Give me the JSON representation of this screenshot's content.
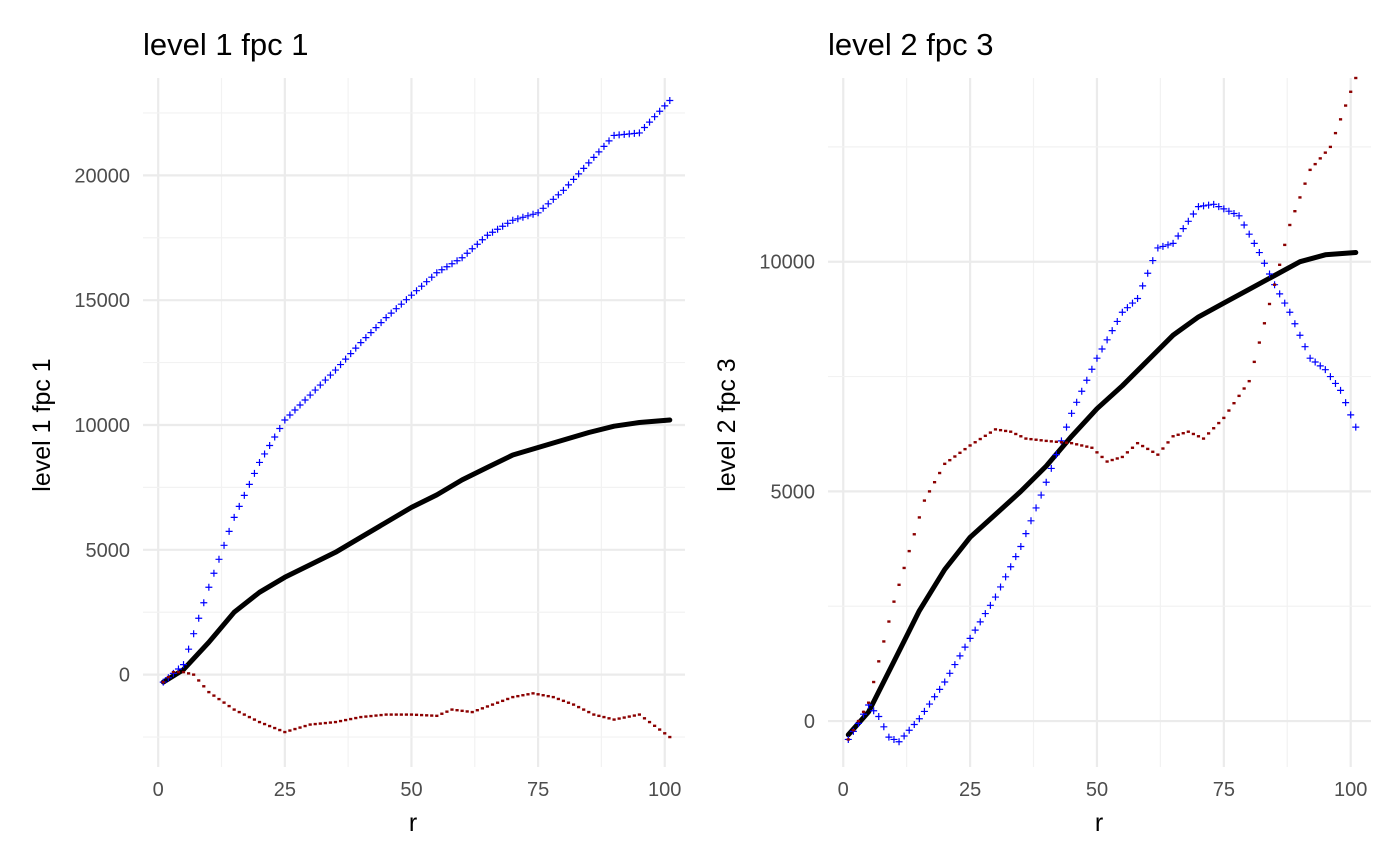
{
  "chart_data": [
    {
      "type": "line",
      "title": "level  1 fpc 1",
      "xlabel": "r",
      "ylabel": "level  1 fpc 1",
      "xlim": [
        -3,
        104
      ],
      "ylim": [
        -3700,
        23900
      ],
      "x_ticks": [
        0,
        25,
        50,
        75,
        100
      ],
      "x_tick_labels": [
        "0",
        "25",
        "50",
        "75",
        "100"
      ],
      "y_ticks": [
        0,
        5000,
        10000,
        15000,
        20000
      ],
      "y_tick_labels": [
        "0",
        "5000",
        "10000",
        "15000",
        "20000"
      ],
      "grid": true,
      "legend": "none",
      "series": [
        {
          "style": "line",
          "color": "#000000",
          "points": [
            [
              1,
              -300
            ],
            [
              5,
              200
            ],
            [
              10,
              1300
            ],
            [
              15,
              2500
            ],
            [
              20,
              3300
            ],
            [
              25,
              3900
            ],
            [
              30,
              4400
            ],
            [
              35,
              4900
            ],
            [
              40,
              5500
            ],
            [
              45,
              6100
            ],
            [
              50,
              6700
            ],
            [
              55,
              7200
            ],
            [
              60,
              7800
            ],
            [
              65,
              8300
            ],
            [
              70,
              8800
            ],
            [
              75,
              9100
            ],
            [
              80,
              9400
            ],
            [
              85,
              9700
            ],
            [
              90,
              9950
            ],
            [
              95,
              10100
            ],
            [
              101,
              10200
            ]
          ]
        },
        {
          "style": "plus",
          "color": "#0000ff",
          "points": [
            [
              1,
              -300
            ],
            [
              5,
              400
            ],
            [
              10,
              3500
            ],
            [
              15,
              6300
            ],
            [
              20,
              8500
            ],
            [
              25,
              10200
            ],
            [
              30,
              11200
            ],
            [
              35,
              12200
            ],
            [
              40,
              13300
            ],
            [
              45,
              14300
            ],
            [
              50,
              15200
            ],
            [
              55,
              16100
            ],
            [
              60,
              16700
            ],
            [
              65,
              17600
            ],
            [
              70,
              18200
            ],
            [
              75,
              18500
            ],
            [
              80,
              19400
            ],
            [
              85,
              20500
            ],
            [
              90,
              21600
            ],
            [
              95,
              21700
            ],
            [
              101,
              23000
            ]
          ]
        },
        {
          "style": "dash",
          "color": "#8b0000",
          "points": [
            [
              1,
              -300
            ],
            [
              3,
              100
            ],
            [
              5,
              100
            ],
            [
              7,
              0
            ],
            [
              10,
              -700
            ],
            [
              15,
              -1400
            ],
            [
              20,
              -1900
            ],
            [
              25,
              -2300
            ],
            [
              30,
              -2000
            ],
            [
              35,
              -1900
            ],
            [
              40,
              -1700
            ],
            [
              45,
              -1600
            ],
            [
              50,
              -1600
            ],
            [
              55,
              -1650
            ],
            [
              58,
              -1400
            ],
            [
              62,
              -1500
            ],
            [
              66,
              -1200
            ],
            [
              70,
              -900
            ],
            [
              74,
              -750
            ],
            [
              78,
              -900
            ],
            [
              82,
              -1200
            ],
            [
              86,
              -1600
            ],
            [
              90,
              -1800
            ],
            [
              95,
              -1600
            ],
            [
              101,
              -2500
            ]
          ]
        }
      ]
    },
    {
      "type": "line",
      "title": "level  2 fpc 3",
      "xlabel": "r",
      "ylabel": "level  2 fpc 3",
      "xlim": [
        -3,
        104
      ],
      "ylim": [
        -1000,
        14000
      ],
      "x_ticks": [
        0,
        25,
        50,
        75,
        100
      ],
      "x_tick_labels": [
        "0",
        "25",
        "50",
        "75",
        "100"
      ],
      "y_ticks": [
        0,
        5000,
        10000
      ],
      "y_tick_labels": [
        "0",
        "5000",
        "10000"
      ],
      "grid": true,
      "legend": "none",
      "series": [
        {
          "style": "line",
          "color": "#000000",
          "points": [
            [
              1,
              -300
            ],
            [
              5,
              200
            ],
            [
              10,
              1300
            ],
            [
              15,
              2400
            ],
            [
              20,
              3300
            ],
            [
              25,
              4000
            ],
            [
              30,
              4500
            ],
            [
              35,
              5000
            ],
            [
              40,
              5550
            ],
            [
              45,
              6200
            ],
            [
              50,
              6800
            ],
            [
              55,
              7300
            ],
            [
              60,
              7850
            ],
            [
              65,
              8400
            ],
            [
              70,
              8800
            ],
            [
              75,
              9100
            ],
            [
              80,
              9400
            ],
            [
              85,
              9700
            ],
            [
              90,
              10000
            ],
            [
              95,
              10150
            ],
            [
              101,
              10200
            ]
          ]
        },
        {
          "style": "plus",
          "color": "#0000ff",
          "points": [
            [
              1,
              -400
            ],
            [
              3,
              -50
            ],
            [
              5,
              350
            ],
            [
              7,
              100
            ],
            [
              9,
              -350
            ],
            [
              11,
              -450
            ],
            [
              15,
              50
            ],
            [
              20,
              850
            ],
            [
              25,
              1800
            ],
            [
              30,
              2700
            ],
            [
              35,
              3800
            ],
            [
              40,
              5200
            ],
            [
              45,
              6700
            ],
            [
              50,
              7900
            ],
            [
              55,
              8900
            ],
            [
              58,
              9200
            ],
            [
              62,
              10300
            ],
            [
              65,
              10400
            ],
            [
              70,
              11200
            ],
            [
              73,
              11250
            ],
            [
              78,
              11000
            ],
            [
              82,
              10200
            ],
            [
              85,
              9500
            ],
            [
              88,
              8900
            ],
            [
              92,
              7900
            ],
            [
              95,
              7650
            ],
            [
              98,
              7200
            ],
            [
              101,
              6400
            ]
          ]
        },
        {
          "style": "dash",
          "color": "#8b0000",
          "points": [
            [
              1,
              -400
            ],
            [
              3,
              0
            ],
            [
              5,
              400
            ],
            [
              7,
              1300
            ],
            [
              10,
              2600
            ],
            [
              13,
              3700
            ],
            [
              16,
              4800
            ],
            [
              20,
              5600
            ],
            [
              25,
              6000
            ],
            [
              30,
              6350
            ],
            [
              33,
              6300
            ],
            [
              36,
              6150
            ],
            [
              40,
              6100
            ],
            [
              45,
              6050
            ],
            [
              49,
              5950
            ],
            [
              52,
              5650
            ],
            [
              55,
              5750
            ],
            [
              58,
              6050
            ],
            [
              62,
              5800
            ],
            [
              65,
              6200
            ],
            [
              68,
              6300
            ],
            [
              71,
              6150
            ],
            [
              75,
              6600
            ],
            [
              80,
              7400
            ],
            [
              85,
              9500
            ],
            [
              88,
              10800
            ],
            [
              92,
              12000
            ],
            [
              96,
              12500
            ],
            [
              101,
              14000
            ]
          ]
        }
      ]
    }
  ]
}
